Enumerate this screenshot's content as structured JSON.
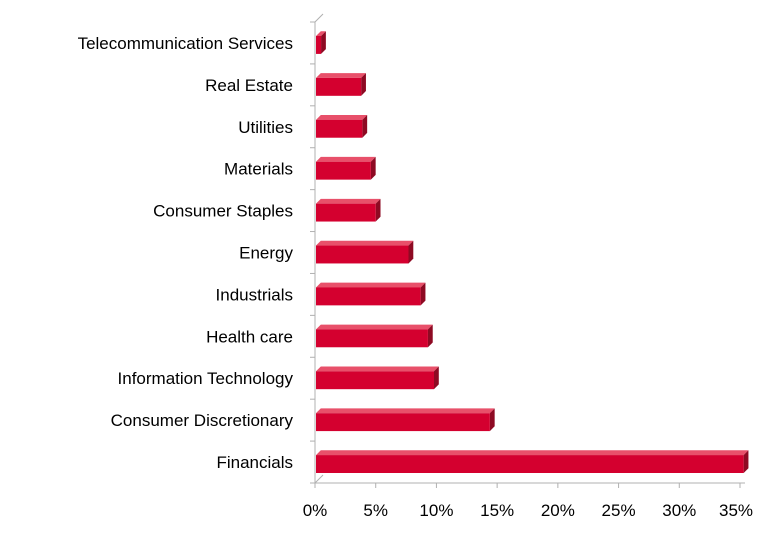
{
  "chart_data": {
    "type": "bar",
    "orientation": "horizontal",
    "style": "3d",
    "categories": [
      "Telecommunication Services",
      "Real Estate",
      "Utilities",
      "Materials",
      "Consumer Staples",
      "Energy",
      "Industrials",
      "Health care",
      "Information Technology",
      "Consumer Discretionary",
      "Financials"
    ],
    "values": [
      0.5,
      3.8,
      3.9,
      4.6,
      5.0,
      7.7,
      8.7,
      9.3,
      9.8,
      14.4,
      35.3
    ],
    "xlim": [
      0,
      35
    ],
    "xticks": [
      "0%",
      "5%",
      "10%",
      "15%",
      "20%",
      "25%",
      "30%",
      "35%"
    ],
    "grid": false,
    "legend": "none",
    "colors": {
      "bar_front": "#d4002f",
      "bar_top": "#e8506a",
      "bar_side": "#8e0a23",
      "axis": "#b0b0b0"
    }
  }
}
